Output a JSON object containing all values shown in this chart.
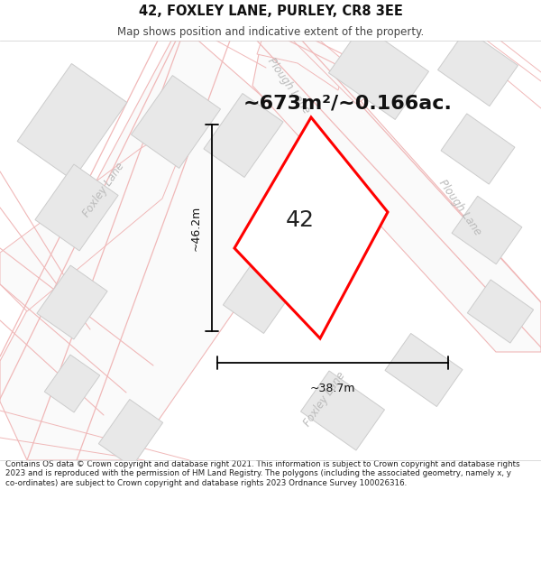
{
  "title": "42, FOXLEY LANE, PURLEY, CR8 3EE",
  "subtitle": "Map shows position and indicative extent of the property.",
  "area_text": "~673m²/~0.166ac.",
  "number_label": "42",
  "dim_vertical": "~46.2m",
  "dim_horizontal": "~38.7m",
  "footer": "Contains OS data © Crown copyright and database right 2021. This information is subject to Crown copyright and database rights 2023 and is reproduced with the permission of HM Land Registry. The polygons (including the associated geometry, namely x, y co-ordinates) are subject to Crown copyright and database rights 2023 Ordnance Survey 100026316.",
  "map_bg": "#ffffff",
  "road_line_color": "#f0b8b8",
  "road_fill_color": "#fafafa",
  "building_face_color": "#e8e8e8",
  "building_edge_color": "#cccccc",
  "plot_edge_color": "#ff0000",
  "dim_color": "#111111",
  "label_color": "#bbbbbb",
  "title_color": "#111111",
  "subtitle_color": "#444444",
  "footer_color": "#222222",
  "area_text_color": "#111111"
}
